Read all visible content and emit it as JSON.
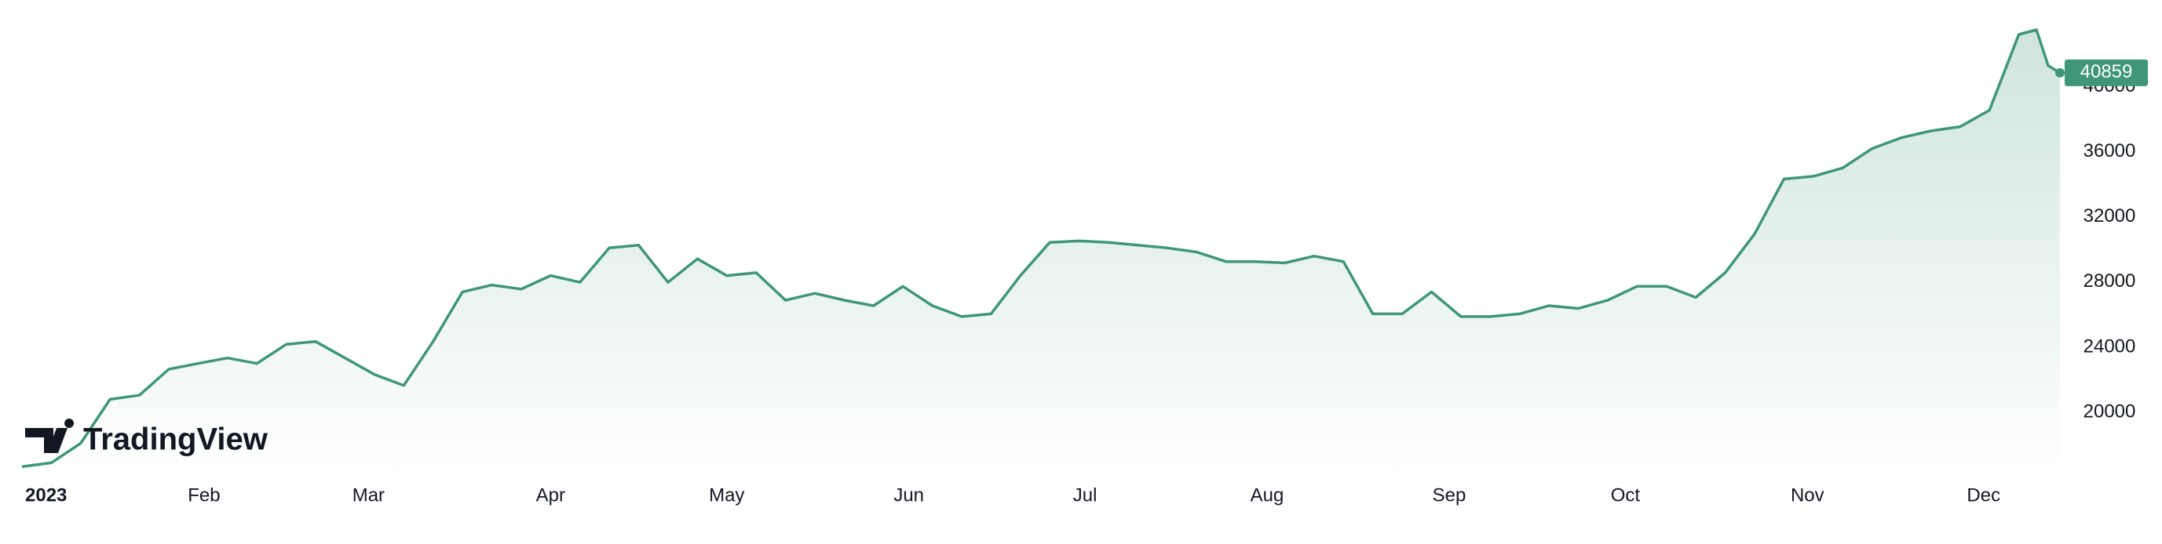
{
  "chart_data": {
    "type": "area",
    "watermark": "TradingView",
    "color": "#3f9679",
    "x": [
      0,
      5,
      10,
      15,
      20,
      25,
      30,
      35,
      40,
      45,
      50,
      55,
      60,
      65,
      70,
      75,
      80,
      85,
      90,
      95,
      100,
      105,
      110,
      115,
      120,
      125,
      130,
      135,
      140,
      145,
      150,
      155,
      160,
      165,
      170,
      175,
      180,
      185,
      190,
      195,
      200,
      205,
      210,
      215,
      220,
      225,
      230,
      235,
      240,
      245,
      250,
      255,
      260,
      265,
      270,
      275,
      280,
      285,
      290,
      295,
      300,
      305,
      310,
      315,
      320,
      325,
      330,
      335,
      340,
      343,
      345,
      347
    ],
    "series": [
      {
        "values": [
          16660,
          16900,
          18100,
          20800,
          21050,
          22650,
          23000,
          23340,
          23000,
          24180,
          24350,
          23340,
          22330,
          21650,
          24350,
          27400,
          27820,
          27570,
          28400,
          27990,
          30100,
          30270,
          27990,
          29430,
          28400,
          28580,
          26890,
          27310,
          26890,
          26550,
          27740,
          26550,
          25880,
          26050,
          28400,
          30440,
          30530,
          30440,
          30270,
          30100,
          29850,
          29260,
          29260,
          29180,
          29600,
          29260,
          26050,
          26050,
          27400,
          25880,
          25880,
          26050,
          26550,
          26380,
          26890,
          27740,
          27740,
          27060,
          28580,
          30950,
          34330,
          34500,
          35010,
          36200,
          36870,
          37290,
          37550,
          38560,
          43210,
          43500,
          41300,
          40859
        ]
      }
    ],
    "xlim": [
      0,
      347
    ],
    "xticks": [
      {
        "value": 0,
        "label": "2023"
      },
      {
        "value": 31,
        "label": "Feb"
      },
      {
        "value": 59,
        "label": "Mar"
      },
      {
        "value": 90,
        "label": "Apr"
      },
      {
        "value": 120,
        "label": "May"
      },
      {
        "value": 151,
        "label": "Jun"
      },
      {
        "value": 181,
        "label": "Jul"
      },
      {
        "value": 212,
        "label": "Aug"
      },
      {
        "value": 243,
        "label": "Sep"
      },
      {
        "value": 273,
        "label": "Oct"
      },
      {
        "value": 304,
        "label": "Nov"
      },
      {
        "value": 334,
        "label": "Dec"
      }
    ],
    "ylim": [
      16150,
      45330
    ],
    "yticks": [
      20000,
      24000,
      28000,
      32000,
      36000,
      40000
    ]
  }
}
